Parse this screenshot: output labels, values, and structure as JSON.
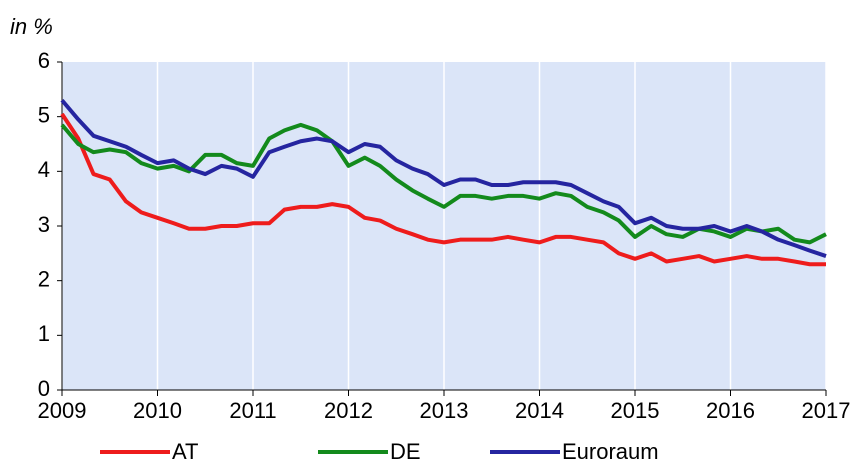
{
  "chart_data": {
    "type": "line",
    "y_label": "in %",
    "x": [
      2009,
      2009.17,
      2009.33,
      2009.5,
      2009.67,
      2009.83,
      2010,
      2010.17,
      2010.33,
      2010.5,
      2010.67,
      2010.83,
      2011,
      2011.17,
      2011.33,
      2011.5,
      2011.67,
      2011.83,
      2012,
      2012.17,
      2012.33,
      2012.5,
      2012.67,
      2012.83,
      2013,
      2013.17,
      2013.33,
      2013.5,
      2013.67,
      2013.83,
      2014,
      2014.17,
      2014.33,
      2014.5,
      2014.67,
      2014.83,
      2015,
      2015.17,
      2015.33,
      2015.5,
      2015.67,
      2015.83,
      2016,
      2016.17,
      2016.33,
      2016.5,
      2016.67,
      2016.83,
      2017
    ],
    "series": [
      {
        "name": "AT",
        "color": "#ee1c1c",
        "values": [
          5.05,
          4.6,
          3.95,
          3.85,
          3.45,
          3.25,
          3.15,
          3.05,
          2.95,
          2.95,
          3.0,
          3.0,
          3.05,
          3.05,
          3.3,
          3.35,
          3.35,
          3.4,
          3.35,
          3.15,
          3.1,
          2.95,
          2.85,
          2.75,
          2.7,
          2.75,
          2.75,
          2.75,
          2.8,
          2.75,
          2.7,
          2.8,
          2.8,
          2.75,
          2.7,
          2.5,
          2.4,
          2.5,
          2.35,
          2.4,
          2.45,
          2.35,
          2.4,
          2.45,
          2.4,
          2.4,
          2.35,
          2.3,
          2.3
        ]
      },
      {
        "name": "DE",
        "color": "#138a1c",
        "values": [
          4.85,
          4.5,
          4.35,
          4.4,
          4.35,
          4.15,
          4.05,
          4.1,
          4.0,
          4.3,
          4.3,
          4.15,
          4.1,
          4.6,
          4.75,
          4.85,
          4.75,
          4.55,
          4.1,
          4.25,
          4.1,
          3.85,
          3.65,
          3.5,
          3.35,
          3.55,
          3.55,
          3.5,
          3.55,
          3.55,
          3.5,
          3.6,
          3.55,
          3.35,
          3.25,
          3.1,
          2.8,
          3.0,
          2.85,
          2.8,
          2.95,
          2.9,
          2.8,
          2.95,
          2.9,
          2.95,
          2.75,
          2.7,
          2.85
        ]
      },
      {
        "name": "Euroraum",
        "color": "#2525a0",
        "values": [
          5.3,
          4.95,
          4.65,
          4.55,
          4.45,
          4.3,
          4.15,
          4.2,
          4.05,
          3.95,
          4.1,
          4.05,
          3.9,
          4.35,
          4.45,
          4.55,
          4.6,
          4.55,
          4.35,
          4.5,
          4.45,
          4.2,
          4.05,
          3.95,
          3.75,
          3.85,
          3.85,
          3.75,
          3.75,
          3.8,
          3.8,
          3.8,
          3.75,
          3.6,
          3.45,
          3.35,
          3.05,
          3.15,
          3.0,
          2.95,
          2.95,
          3.0,
          2.9,
          3.0,
          2.9,
          2.75,
          2.65,
          2.55,
          2.45
        ]
      }
    ],
    "xlim": [
      2009,
      2017
    ],
    "xticks": [
      2009,
      2010,
      2011,
      2012,
      2013,
      2014,
      2015,
      2016,
      2017
    ],
    "ylim": [
      0,
      6
    ],
    "yticks": [
      0,
      1,
      2,
      3,
      4,
      5,
      6
    ],
    "background": "#dbe5f8",
    "legend": "bottom"
  }
}
